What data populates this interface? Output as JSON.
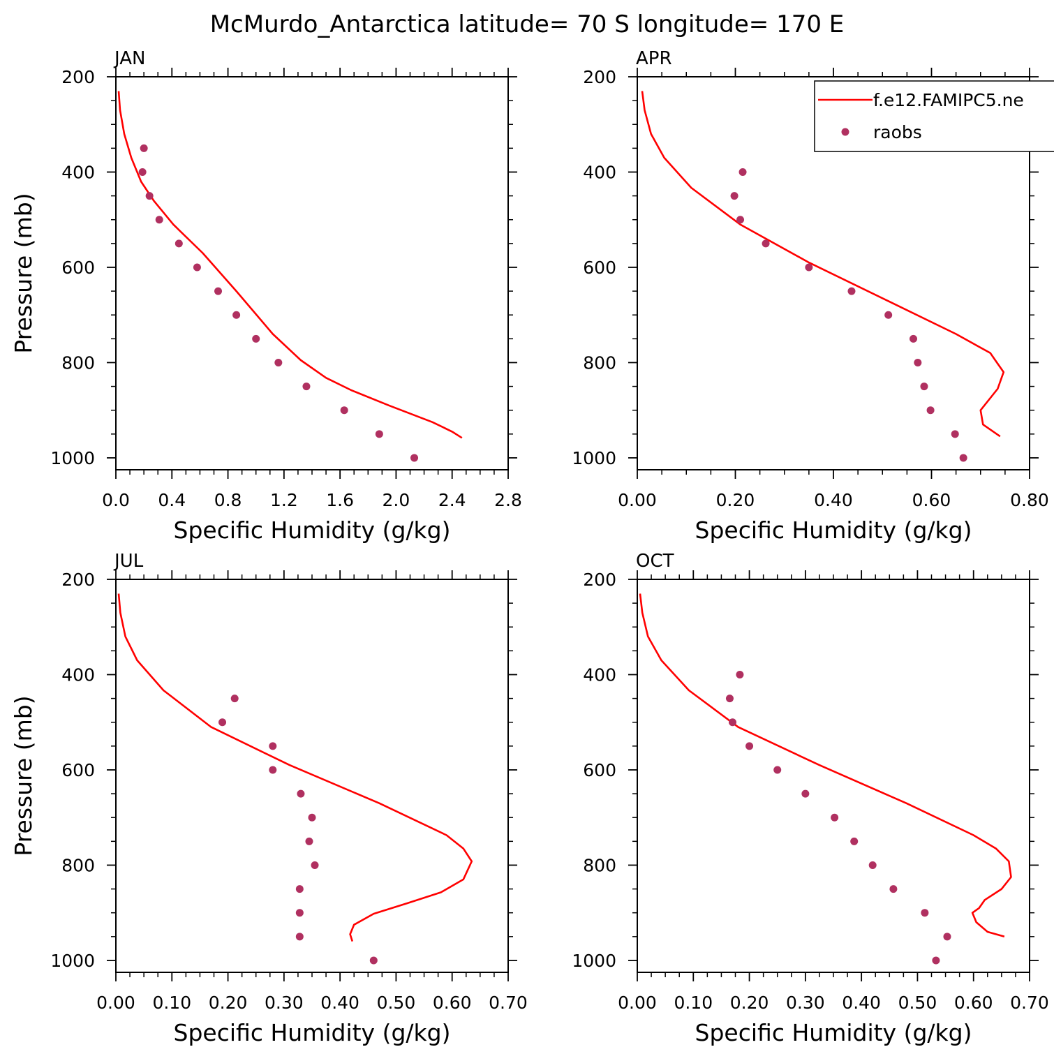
{
  "figure": {
    "title": "McMurdo_Antarctica  latitude= 70 S longitude= 170 E"
  },
  "legend": {
    "placement": "top-right of APR panel",
    "entries": [
      {
        "label": "f.e12.FAMIPC5.ne",
        "style": "line",
        "color": "#ff0000"
      },
      {
        "label": "raobs",
        "style": "marker",
        "color": "#b03060"
      }
    ]
  },
  "colors": {
    "model": "#ff0000",
    "obs": "#b03060"
  },
  "chart_data": [
    {
      "type": "line",
      "panel_label": "JAN",
      "xlabel": "Specific Humidity (g/kg)",
      "ylabel": "Pressure (mb)",
      "xlim": [
        0.0,
        2.8
      ],
      "ylim": [
        1025,
        200
      ],
      "y_reversed": true,
      "xticks": [
        "0.0",
        "0.4",
        "0.8",
        "1.2",
        "1.6",
        "2.0",
        "2.4",
        "2.8"
      ],
      "xtick_values": [
        0.0,
        0.4,
        0.8,
        1.2,
        1.6,
        2.0,
        2.4,
        2.8
      ],
      "yticks": [
        "200",
        "400",
        "600",
        "800",
        "1000"
      ],
      "ytick_values": [
        200,
        400,
        600,
        800,
        1000
      ],
      "series": [
        {
          "name": "f.e12.FAMIPC5.ne",
          "kind": "line",
          "x": [
            0.02,
            0.03,
            0.06,
            0.11,
            0.18,
            0.27,
            0.41,
            0.62,
            0.86,
            1.12,
            1.32,
            1.5,
            1.68,
            1.95,
            2.26,
            2.4,
            2.47
          ],
          "y": [
            230,
            270,
            320,
            370,
            420,
            460,
            510,
            570,
            650,
            740,
            795,
            832,
            858,
            890,
            925,
            945,
            958
          ]
        },
        {
          "name": "raobs",
          "kind": "scatter",
          "x": [
            0.2,
            0.19,
            0.24,
            0.31,
            0.45,
            0.58,
            0.73,
            0.86,
            1.0,
            1.16,
            1.36,
            1.63,
            1.88,
            2.13
          ],
          "y": [
            350,
            400,
            450,
            500,
            550,
            600,
            650,
            700,
            750,
            800,
            850,
            900,
            950,
            1000
          ]
        }
      ]
    },
    {
      "type": "line",
      "panel_label": "APR",
      "xlabel": "Specific Humidity (g/kg)",
      "ylabel": "",
      "xlim": [
        0.0,
        0.8
      ],
      "ylim": [
        1025,
        200
      ],
      "y_reversed": true,
      "xticks": [
        "0.00",
        "0.20",
        "0.40",
        "0.60",
        "0.80"
      ],
      "xtick_values": [
        0.0,
        0.2,
        0.4,
        0.6,
        0.8
      ],
      "yticks": [
        "200",
        "400",
        "600",
        "800",
        "1000"
      ],
      "ytick_values": [
        200,
        400,
        600,
        800,
        1000
      ],
      "series": [
        {
          "name": "f.e12.FAMIPC5.ne",
          "kind": "line",
          "x": [
            0.01,
            0.015,
            0.028,
            0.055,
            0.11,
            0.21,
            0.35,
            0.51,
            0.65,
            0.72,
            0.73,
            0.747,
            0.735,
            0.7,
            0.705,
            0.74
          ],
          "y": [
            230,
            270,
            320,
            370,
            433,
            510,
            590,
            670,
            740,
            780,
            795,
            820,
            855,
            900,
            930,
            955
          ]
        },
        {
          "name": "raobs",
          "kind": "scatter",
          "x": [
            0.215,
            0.198,
            0.21,
            0.262,
            0.35,
            0.437,
            0.512,
            0.563,
            0.572,
            0.585,
            0.598,
            0.648,
            0.665
          ],
          "y": [
            400,
            450,
            500,
            550,
            600,
            650,
            700,
            750,
            800,
            850,
            900,
            950,
            1000
          ]
        }
      ]
    },
    {
      "type": "line",
      "panel_label": "JUL",
      "xlabel": "Specific Humidity (g/kg)",
      "ylabel": "Pressure (mb)",
      "xlim": [
        0.0,
        0.7
      ],
      "ylim": [
        1025,
        200
      ],
      "y_reversed": true,
      "xticks": [
        "0.00",
        "0.10",
        "0.20",
        "0.30",
        "0.40",
        "0.50",
        "0.60",
        "0.70"
      ],
      "xtick_values": [
        0.0,
        0.1,
        0.2,
        0.3,
        0.4,
        0.5,
        0.6,
        0.7
      ],
      "yticks": [
        "200",
        "400",
        "600",
        "800",
        "1000"
      ],
      "ytick_values": [
        200,
        400,
        600,
        800,
        1000
      ],
      "series": [
        {
          "name": "f.e12.FAMIPC5.ne",
          "kind": "line",
          "x": [
            0.005,
            0.008,
            0.017,
            0.038,
            0.085,
            0.17,
            0.31,
            0.47,
            0.59,
            0.62,
            0.635,
            0.62,
            0.58,
            0.52,
            0.46,
            0.425,
            0.418,
            0.422
          ],
          "y": [
            230,
            270,
            320,
            370,
            433,
            510,
            590,
            670,
            737,
            765,
            792,
            830,
            857,
            880,
            902,
            925,
            945,
            960
          ]
        },
        {
          "name": "raobs",
          "kind": "scatter",
          "x": [
            0.212,
            0.19,
            0.28,
            0.28,
            0.33,
            0.35,
            0.345,
            0.355,
            0.328,
            0.328,
            0.328,
            0.46
          ],
          "y": [
            450,
            500,
            550,
            600,
            650,
            700,
            750,
            800,
            850,
            900,
            950,
            1000
          ]
        }
      ]
    },
    {
      "type": "line",
      "panel_label": "OCT",
      "xlabel": "Specific Humidity (g/kg)",
      "ylabel": "",
      "xlim": [
        0.0,
        0.7
      ],
      "ylim": [
        1025,
        200
      ],
      "y_reversed": true,
      "xticks": [
        "0.00",
        "0.10",
        "0.20",
        "0.30",
        "0.40",
        "0.50",
        "0.60",
        "0.70"
      ],
      "xtick_values": [
        0.0,
        0.1,
        0.2,
        0.3,
        0.4,
        0.5,
        0.6,
        0.7
      ],
      "yticks": [
        "200",
        "400",
        "600",
        "800",
        "1000"
      ],
      "ytick_values": [
        200,
        400,
        600,
        800,
        1000
      ],
      "series": [
        {
          "name": "f.e12.FAMIPC5.ne",
          "kind": "line",
          "x": [
            0.005,
            0.009,
            0.019,
            0.043,
            0.092,
            0.18,
            0.325,
            0.48,
            0.6,
            0.64,
            0.663,
            0.667,
            0.65,
            0.62,
            0.61,
            0.598,
            0.605,
            0.625,
            0.655
          ],
          "y": [
            230,
            270,
            320,
            370,
            433,
            510,
            590,
            670,
            737,
            765,
            792,
            825,
            850,
            873,
            890,
            900,
            920,
            940,
            950
          ]
        },
        {
          "name": "raobs",
          "kind": "scatter",
          "x": [
            0.183,
            0.165,
            0.17,
            0.2,
            0.25,
            0.3,
            0.352,
            0.387,
            0.42,
            0.457,
            0.513,
            0.553,
            0.533
          ],
          "y": [
            400,
            450,
            500,
            550,
            600,
            650,
            700,
            750,
            800,
            850,
            900,
            950,
            1000
          ]
        }
      ]
    }
  ]
}
